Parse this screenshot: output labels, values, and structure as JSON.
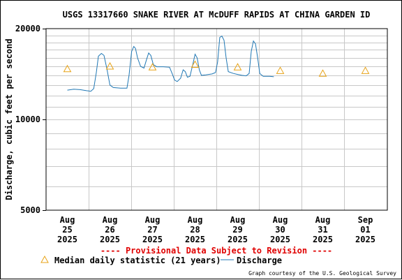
{
  "chart_data": {
    "type": "line",
    "title": "USGS 13317660 SNAKE RIVER AT McDUFF RAPIDS AT CHINA GARDEN ID",
    "ylabel": "Discharge, cubic feet per second",
    "xlabel": "",
    "yscale": "log",
    "ylim": [
      5000,
      20000
    ],
    "y_tick_labels": [
      "20000",
      "10000",
      "5000"
    ],
    "x_ticks": [
      {
        "label": [
          "Aug",
          "25",
          "2025"
        ],
        "day": 0
      },
      {
        "label": [
          "Aug",
          "26",
          "2025"
        ],
        "day": 1
      },
      {
        "label": [
          "Aug",
          "27",
          "2025"
        ],
        "day": 2
      },
      {
        "label": [
          "Aug",
          "28",
          "2025"
        ],
        "day": 3
      },
      {
        "label": [
          "Aug",
          "29",
          "2025"
        ],
        "day": 4
      },
      {
        "label": [
          "Aug",
          "30",
          "2025"
        ],
        "day": 5
      },
      {
        "label": [
          "Aug",
          "31",
          "2025"
        ],
        "day": 6
      },
      {
        "label": [
          "Sep",
          "01",
          "2025"
        ],
        "day": 7
      }
    ],
    "grid": true,
    "legend_position": "bottom",
    "series": [
      {
        "name": "Discharge",
        "color": "#1f77b4",
        "points": [
          [
            0.0,
            12500
          ],
          [
            0.15,
            12600
          ],
          [
            0.3,
            12550
          ],
          [
            0.45,
            12450
          ],
          [
            0.55,
            12400
          ],
          [
            0.62,
            12650
          ],
          [
            0.68,
            14300
          ],
          [
            0.73,
            16200
          ],
          [
            0.8,
            16550
          ],
          [
            0.86,
            16300
          ],
          [
            0.93,
            14700
          ],
          [
            1.0,
            13000
          ],
          [
            1.08,
            12750
          ],
          [
            1.25,
            12700
          ],
          [
            1.4,
            12700
          ],
          [
            1.45,
            14000
          ],
          [
            1.51,
            16800
          ],
          [
            1.56,
            17450
          ],
          [
            1.6,
            17200
          ],
          [
            1.65,
            16000
          ],
          [
            1.72,
            15000
          ],
          [
            1.8,
            14800
          ],
          [
            1.86,
            15800
          ],
          [
            1.91,
            16600
          ],
          [
            1.96,
            16300
          ],
          [
            2.02,
            15200
          ],
          [
            2.1,
            14950
          ],
          [
            2.25,
            14950
          ],
          [
            2.4,
            14900
          ],
          [
            2.46,
            14200
          ],
          [
            2.52,
            13500
          ],
          [
            2.58,
            13350
          ],
          [
            2.66,
            13700
          ],
          [
            2.72,
            14600
          ],
          [
            2.77,
            14400
          ],
          [
            2.82,
            13800
          ],
          [
            2.88,
            13900
          ],
          [
            2.95,
            15300
          ],
          [
            3.0,
            16450
          ],
          [
            3.05,
            16000
          ],
          [
            3.1,
            14600
          ],
          [
            3.15,
            14000
          ],
          [
            3.25,
            14050
          ],
          [
            3.4,
            14150
          ],
          [
            3.48,
            14300
          ],
          [
            3.53,
            15500
          ],
          [
            3.58,
            18700
          ],
          [
            3.63,
            18900
          ],
          [
            3.68,
            18300
          ],
          [
            3.73,
            16000
          ],
          [
            3.78,
            14400
          ],
          [
            3.9,
            14200
          ],
          [
            4.0,
            14100
          ],
          [
            4.1,
            14000
          ],
          [
            4.2,
            13950
          ],
          [
            4.27,
            14200
          ],
          [
            4.32,
            16800
          ],
          [
            4.37,
            18200
          ],
          [
            4.42,
            17800
          ],
          [
            4.47,
            16000
          ],
          [
            4.52,
            14200
          ],
          [
            4.6,
            13900
          ],
          [
            4.75,
            13900
          ],
          [
            4.85,
            13850
          ]
        ]
      },
      {
        "name": "Median daily statistic (21 years)",
        "marker": "triangle",
        "color": "#e8a317",
        "points": [
          [
            0.0,
            14700
          ],
          [
            1.0,
            15000
          ],
          [
            2.0,
            14900
          ],
          [
            3.0,
            15200
          ],
          [
            4.0,
            14900
          ],
          [
            5.0,
            14500
          ],
          [
            6.0,
            14200
          ],
          [
            7.0,
            14500
          ]
        ]
      }
    ]
  },
  "notice": "---- Provisional Data Subject to Revision ----",
  "legend": {
    "median_label": "Median daily statistic (21 years)",
    "discharge_label": "Discharge"
  },
  "credit": "Graph courtesy of the U.S. Geological Survey"
}
